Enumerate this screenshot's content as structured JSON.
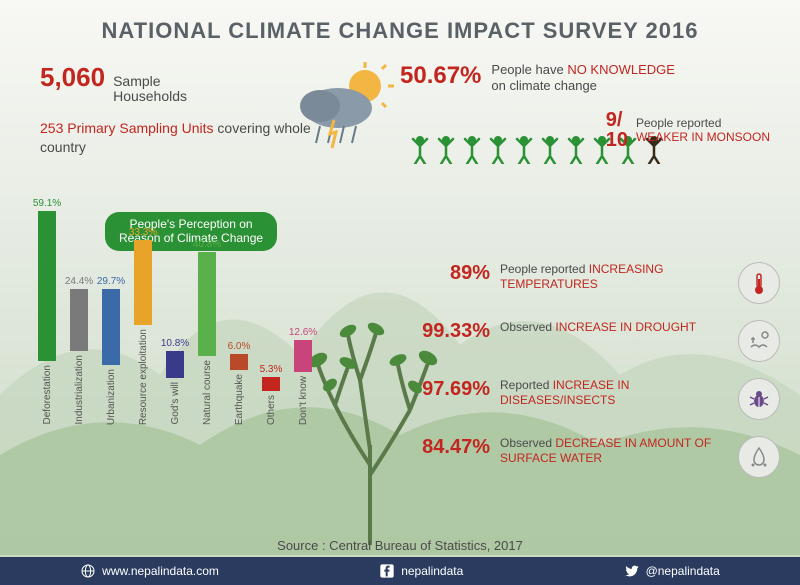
{
  "title": {
    "text": "NATIONAL CLIMATE CHANGE IMPACT SURVEY 2016",
    "fontsize": 22,
    "fontweight": "bold",
    "color": "#5a6268"
  },
  "left": {
    "sample": {
      "number": "5,060",
      "label": "Sample\nHouseholds",
      "num_fontsize": 26,
      "lbl_fontsize": 14
    },
    "psu": {
      "highlight": "253 Primary Sampling Units",
      "rest": " covering whole country",
      "fontsize": 14
    }
  },
  "right": {
    "noknowledge": {
      "pct": "50.67%",
      "text1": "People have",
      "em": "NO KNOWLEDGE",
      "text2": "on climate change",
      "pct_fontsize": 24,
      "txt_fontsize": 13
    },
    "monsoon": {
      "numer": "9",
      "denom": "10",
      "text1": "People reported",
      "em": "WEAKER IN MONSOON",
      "frac_fontsize": 20,
      "txt_fontsize": 12
    },
    "people": {
      "count": 10,
      "green": 9,
      "green_color": "#2a9134",
      "other_color": "#3a2a1a"
    }
  },
  "chart": {
    "title": "People's Perception on\nReason of Climate Change",
    "title_fontsize": 12,
    "max_height": 150,
    "label_fontsize": 10,
    "value_fontsize": 10,
    "bars": [
      {
        "label": "Deforestation",
        "value": 59.1,
        "color": "#2a9134"
      },
      {
        "label": "Industrialization",
        "value": 24.4,
        "color": "#7a7a7a"
      },
      {
        "label": "Urbanization",
        "value": 29.7,
        "color": "#3a6aa8"
      },
      {
        "label": "Resource exploitation",
        "value": 33.3,
        "color": "#e8a428"
      },
      {
        "label": "God's will",
        "value": 10.8,
        "color": "#3a3a8a"
      },
      {
        "label": "Natural course",
        "value": 40.8,
        "color": "#5ab04a"
      },
      {
        "label": "Earthquake",
        "value": 6.0,
        "color": "#b84a2a"
      },
      {
        "label": "Others",
        "value": 5.3,
        "color": "#c2261f"
      },
      {
        "label": "Don't know",
        "value": 12.6,
        "color": "#c8447a"
      }
    ]
  },
  "stats": [
    {
      "pct": "89%",
      "text1": "People reported",
      "em": "INCREASING TEMPERATURES",
      "icon": "thermometer"
    },
    {
      "pct": "99.33%",
      "text1": "Observed",
      "em": "INCREASE IN DROUGHT",
      "icon": "drought"
    },
    {
      "pct": "97.69%",
      "text1": "Reported",
      "em": "INCREASE IN DISEASES/INSECTS",
      "icon": "bug"
    },
    {
      "pct": "84.47%",
      "text1": "Observed",
      "em": "DECREASE IN AMOUNT OF SURFACE WATER",
      "icon": "water"
    }
  ],
  "stat_style": {
    "pct_fontsize": 20,
    "txt_fontsize": 12
  },
  "source": "Source : Central Bureau of Statistics, 2017",
  "source_fontsize": 13,
  "footer": {
    "website": "www.nepalindata.com",
    "facebook": "nepalindata",
    "twitter": "@nepalindata",
    "fontsize": 12
  },
  "colors": {
    "accent": "#c2261f",
    "text": "#4a4a4a",
    "footer_bg": "#2a3b5f",
    "chart_title_bg": "#2a9134"
  }
}
